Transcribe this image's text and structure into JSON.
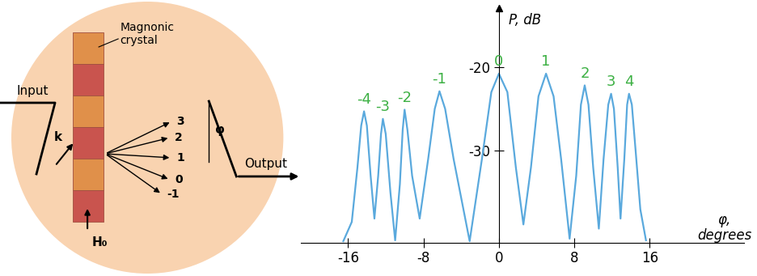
{
  "diagram": {
    "crystal_label": "Magnonic\ncrystal",
    "input_label": "Input",
    "wavevector_label": "k",
    "orders": [
      "3",
      "2",
      "1",
      "0",
      "-1"
    ],
    "angle_label": "φ",
    "output_label": "Output",
    "field_label": "H₀"
  },
  "chart_data": {
    "type": "line",
    "ylabel": "P, dB",
    "xlabel": "φ,\ndegrees",
    "color": "#5aa9dd",
    "x": [
      -16.5,
      -15.6,
      -15.0,
      -14.6,
      -14.3,
      -14.0,
      -13.6,
      -13.2,
      -12.8,
      -12.5,
      -12.3,
      -12.0,
      -11.5,
      -11.0,
      -10.5,
      -10.2,
      -10.0,
      -9.7,
      -9.2,
      -8.4,
      -7.5,
      -6.8,
      -6.3,
      -5.7,
      -4.8,
      -3.1,
      -1.8,
      -0.8,
      0.0,
      0.9,
      1.8,
      2.6,
      3.4,
      4.2,
      5.0,
      5.8,
      6.6,
      7.5,
      8.2,
      8.7,
      9.1,
      9.5,
      10.0,
      10.6,
      11.1,
      11.6,
      11.9,
      12.2,
      12.6,
      12.9,
      13.3,
      13.6,
      13.8,
      14.1,
      14.5,
      15.0,
      15.6
    ],
    "values": [
      -40.8,
      -38.5,
      -32,
      -27,
      -25.3,
      -27,
      -33,
      -38.1,
      -33,
      -28,
      -26.2,
      -28,
      -35,
      -40.7,
      -34,
      -27.5,
      -25.1,
      -27.5,
      -33,
      -38.1,
      -31,
      -25,
      -22.9,
      -25,
      -31,
      -40.8,
      -31,
      -23,
      -20.8,
      -23,
      -32,
      -38.8,
      -32,
      -23.5,
      -20.8,
      -23.5,
      -31,
      -40.5,
      -33,
      -24.5,
      -22.2,
      -24.5,
      -32,
      -39.3,
      -31,
      -24.5,
      -23.2,
      -25,
      -32,
      -38.1,
      -31,
      -24.5,
      -23.2,
      -24.5,
      -30,
      -37,
      -40.7
    ],
    "xlim": [
      -21,
      26
    ],
    "ylim": [
      -41,
      -13
    ],
    "xticks": [
      -16,
      -8,
      0,
      8,
      16
    ],
    "yticks": [
      -20,
      -30
    ],
    "annotations": [
      {
        "text": "-4",
        "x": -14.3,
        "y": -25.3
      },
      {
        "text": "-3",
        "x": -12.3,
        "y": -26.2
      },
      {
        "text": "-2",
        "x": -10.0,
        "y": -25.1
      },
      {
        "text": "-1",
        "x": -6.3,
        "y": -22.9
      },
      {
        "text": "0",
        "x": 0.0,
        "y": -20.8
      },
      {
        "text": "1",
        "x": 5.0,
        "y": -20.8
      },
      {
        "text": "2",
        "x": 9.1,
        "y": -22.2
      },
      {
        "text": "3",
        "x": 11.9,
        "y": -23.2
      },
      {
        "text": "4",
        "x": 13.8,
        "y": -23.2
      }
    ]
  }
}
